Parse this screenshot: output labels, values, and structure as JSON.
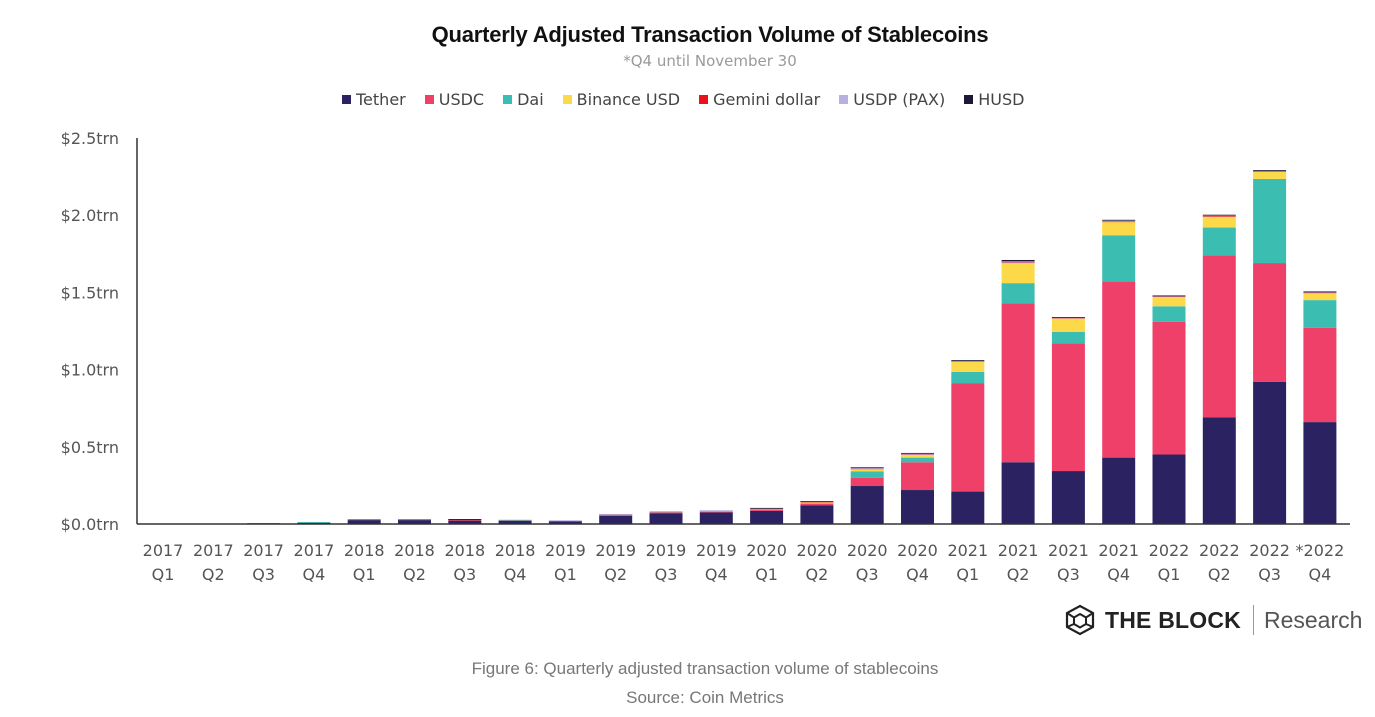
{
  "chart_data": {
    "type": "bar",
    "stacked": true,
    "title": "Quarterly Adjusted Transaction Volume of Stablecoins",
    "subtitle": "*Q4 until November 30",
    "xlabel": "",
    "ylabel": "",
    "ylim": [
      0,
      2.5
    ],
    "yticks": [
      0,
      0.5,
      1.0,
      1.5,
      2.0,
      2.5
    ],
    "ytick_labels": [
      "$0.0trn",
      "$0.5trn",
      "$1.0trn",
      "$1.5trn",
      "$2.0trn",
      "$2.5trn"
    ],
    "grid": false,
    "legend_position": "top",
    "categories": [
      [
        "2017",
        "Q1"
      ],
      [
        "2017",
        "Q2"
      ],
      [
        "2017",
        "Q3"
      ],
      [
        "2017",
        "Q4"
      ],
      [
        "2018",
        "Q1"
      ],
      [
        "2018",
        "Q2"
      ],
      [
        "2018",
        "Q3"
      ],
      [
        "2018",
        "Q4"
      ],
      [
        "2019",
        "Q1"
      ],
      [
        "2019",
        "Q2"
      ],
      [
        "2019",
        "Q3"
      ],
      [
        "2019",
        "Q4"
      ],
      [
        "2020",
        "Q1"
      ],
      [
        "2020",
        "Q2"
      ],
      [
        "2020",
        "Q3"
      ],
      [
        "2020",
        "Q4"
      ],
      [
        "2021",
        "Q1"
      ],
      [
        "2021",
        "Q2"
      ],
      [
        "2021",
        "Q3"
      ],
      [
        "2021",
        "Q4"
      ],
      [
        "2022",
        "Q1"
      ],
      [
        "2022",
        "Q2"
      ],
      [
        "2022",
        "Q3"
      ],
      [
        "*2022",
        "Q4"
      ]
    ],
    "series": [
      {
        "name": "Tether",
        "color": "#2b2361",
        "values": [
          0.0,
          0.0,
          0.002,
          0.008,
          0.024,
          0.024,
          0.022,
          0.02,
          0.016,
          0.052,
          0.07,
          0.075,
          0.085,
          0.12,
          0.246,
          0.22,
          0.21,
          0.4,
          0.343,
          0.43,
          0.45,
          0.69,
          0.92,
          0.66
        ]
      },
      {
        "name": "USDC",
        "color": "#ee4068",
        "values": [
          0.0,
          0.0,
          0.0,
          0.0,
          0.0,
          0.0,
          0.004,
          0.002,
          0.003,
          0.005,
          0.006,
          0.005,
          0.008,
          0.01,
          0.054,
          0.18,
          0.7,
          1.03,
          0.827,
          1.14,
          0.86,
          1.05,
          0.77,
          0.61
        ]
      },
      {
        "name": "Dai",
        "color": "#3bbdb2",
        "values": [
          0.0,
          0.0,
          0.0,
          0.002,
          0.0,
          0.0,
          0.0,
          0.003,
          0.0,
          0.001,
          0.002,
          0.002,
          0.003,
          0.005,
          0.04,
          0.03,
          0.075,
          0.13,
          0.075,
          0.3,
          0.1,
          0.18,
          0.545,
          0.18
        ]
      },
      {
        "name": "Binance USD",
        "color": "#fbd949",
        "values": [
          0.0,
          0.0,
          0.0,
          0.0,
          0.0,
          0.0,
          0.0,
          0.0,
          0.0,
          0.0,
          0.0,
          0.002,
          0.002,
          0.004,
          0.015,
          0.017,
          0.065,
          0.13,
          0.085,
          0.085,
          0.06,
          0.07,
          0.045,
          0.045
        ]
      },
      {
        "name": "Gemini dollar",
        "color": "#e8141c",
        "values": [
          0.0,
          0.0,
          0.0,
          0.0,
          0.0,
          0.0,
          0.001,
          0.0,
          0.0,
          0.001,
          0.0,
          0.0,
          0.0,
          0.002,
          0.002,
          0.002,
          0.002,
          0.003,
          0.002,
          0.003,
          0.002,
          0.004,
          0.003,
          0.003
        ]
      },
      {
        "name": "USDP (PAX)",
        "color": "#b7b0e0",
        "values": [
          0.0,
          0.0,
          0.0,
          0.0,
          0.0,
          0.0,
          0.0,
          0.0,
          0.001,
          0.001,
          0.002,
          0.001,
          0.001,
          0.002,
          0.005,
          0.006,
          0.005,
          0.008,
          0.003,
          0.007,
          0.003,
          0.004,
          0.004,
          0.003
        ]
      },
      {
        "name": "HUSD",
        "color": "#1b1838",
        "values": [
          0.0,
          0.0,
          0.0,
          0.0,
          0.001,
          0.001,
          0.001,
          0.0,
          0.0,
          0.0,
          0.0,
          0.0,
          0.001,
          0.002,
          0.003,
          0.004,
          0.005,
          0.009,
          0.004,
          0.005,
          0.003,
          0.002,
          0.003,
          0.002
        ]
      }
    ]
  },
  "caption": {
    "figure": "Figure 6: Quarterly adjusted transaction volume of stablecoins",
    "source": "Source: Coin Metrics"
  },
  "branding": {
    "icon": "cube-logo-icon",
    "brand": "THE BLOCK",
    "division": "Research"
  }
}
